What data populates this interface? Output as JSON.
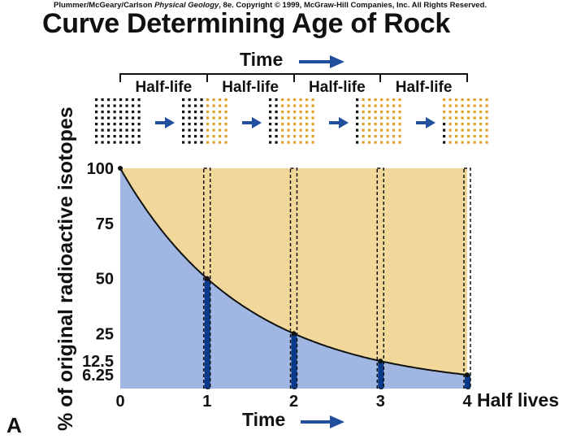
{
  "header": {
    "credit_authors": "Plummer/McGeary/Carlson",
    "credit_book": "Physical Geology",
    "credit_rest": ", 8e.  Copyright © 1999, McGraw-Hill Companies, Inc. All Rights Reserved.",
    "title": "Curve Determining Age of Rock",
    "panel_letter": "A"
  },
  "colors": {
    "decayed_fill": "#f2d79a",
    "remaining_fill": "#9fb7e2",
    "bar": "#0a3a8c",
    "arrow": "#1f4f9e",
    "parent_dot": "#111111",
    "daughter_dot": "#e0a02a"
  },
  "top_strip": {
    "time_label": "Time",
    "half_life_labels": [
      "Half-life",
      "Half-life",
      "Half-life",
      "Half-life"
    ]
  },
  "chart_data": {
    "type": "line",
    "ylabel": "% of original radioactive isotopes",
    "xlabel": "Time",
    "x_unit_label": "Half lives",
    "x_ticks": [
      "0",
      "1",
      "2",
      "3",
      "4"
    ],
    "y_ticks": [
      "100",
      "75",
      "50",
      "25",
      "12.5",
      "6.25"
    ],
    "y_tick_values": [
      100,
      75,
      50,
      25,
      12.5,
      6.25
    ],
    "xlim": [
      0,
      4
    ],
    "ylim": [
      0,
      100
    ],
    "grid": false,
    "series": [
      {
        "values": [
          100,
          50,
          25,
          12.5,
          6.25
        ],
        "x": [
          0,
          1,
          2,
          3,
          4
        ]
      }
    ]
  }
}
